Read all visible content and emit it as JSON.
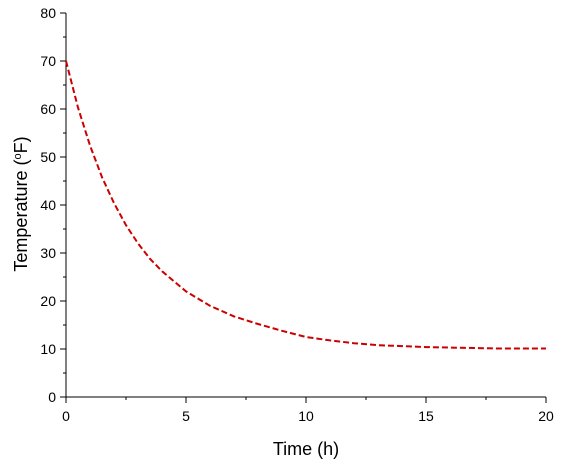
{
  "chart_data": {
    "type": "line",
    "title": "",
    "xlabel": "Time (h)",
    "ylabel_parts": {
      "before": "Temperature (",
      "superscript": "o",
      "after": "F)"
    },
    "xlim": [
      0,
      20
    ],
    "ylim": [
      0,
      80
    ],
    "x_ticks": [
      0,
      5,
      10,
      15,
      20
    ],
    "y_ticks": [
      0,
      10,
      20,
      30,
      40,
      50,
      60,
      70,
      80
    ],
    "x_tick_labels": [
      "0",
      "5",
      "10",
      "15",
      "20"
    ],
    "y_tick_labels": [
      "0",
      "10",
      "20",
      "30",
      "40",
      "50",
      "60",
      "70",
      "80"
    ],
    "grid": false,
    "legend": "none",
    "series": [
      {
        "color": "#cc0000",
        "line_style": "dashed",
        "x": [
          0,
          0.5,
          1,
          1.5,
          2,
          2.5,
          3,
          3.5,
          4,
          5,
          6,
          7,
          8,
          9,
          10,
          11,
          12,
          13,
          14,
          15,
          16,
          17,
          18,
          19,
          20
        ],
        "y": [
          70,
          60.3,
          52.4,
          45.8,
          40.4,
          35.8,
          32.0,
          28.8,
          26.2,
          22.0,
          19.0,
          16.8,
          15.2,
          13.8,
          12.5,
          11.8,
          11.2,
          10.8,
          10.6,
          10.4,
          10.3,
          10.2,
          10.1,
          10.1,
          10.1
        ]
      }
    ]
  }
}
